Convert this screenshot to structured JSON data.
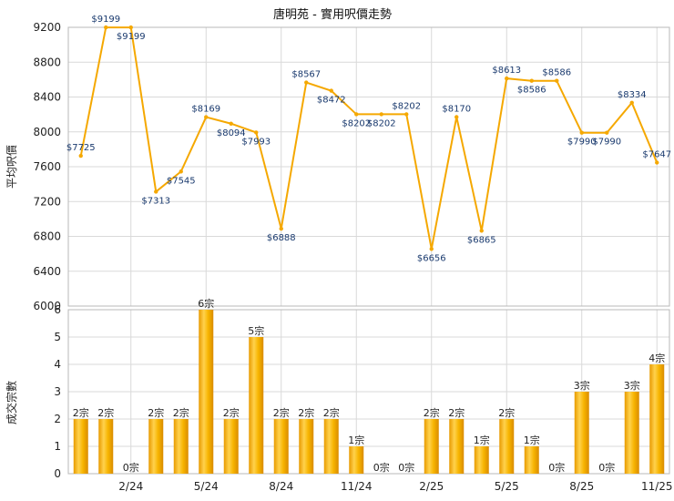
{
  "chart_data": [
    {
      "type": "line",
      "title": "唐明苑 - 實用呎價走勢",
      "ylabel": "平均呎價",
      "ylim": [
        6000,
        9200
      ],
      "yticks": [
        6000,
        6400,
        6800,
        7200,
        7600,
        8000,
        8400,
        8800,
        9200
      ],
      "x_ticks": [
        "2/24",
        "5/24",
        "8/24",
        "11/24",
        "2/25",
        "5/25",
        "8/25",
        "11/25"
      ],
      "grid": true,
      "series_color": "#f5a800",
      "points": [
        {
          "value": 7725,
          "label": "$7725"
        },
        {
          "value": 9199,
          "label": "$9199"
        },
        {
          "value": 9199,
          "label": "$9199"
        },
        {
          "value": 7313,
          "label": "$7313"
        },
        {
          "value": 7545,
          "label": "$7545"
        },
        {
          "value": 8169,
          "label": "$8169"
        },
        {
          "value": 8094,
          "label": "$8094"
        },
        {
          "value": 7993,
          "label": "$7993"
        },
        {
          "value": 6888,
          "label": "$6888"
        },
        {
          "value": 8567,
          "label": "$8567"
        },
        {
          "value": 8472,
          "label": "$8472"
        },
        {
          "value": 8202,
          "label": "$8202"
        },
        {
          "value": 8202,
          "label": "$8202"
        },
        {
          "value": 8202,
          "label": "$8202"
        },
        {
          "value": 6656,
          "label": "$6656"
        },
        {
          "value": 8170,
          "label": "$8170"
        },
        {
          "value": 6865,
          "label": "$6865"
        },
        {
          "value": 8613,
          "label": "$8613"
        },
        {
          "value": 8586,
          "label": "$8586"
        },
        {
          "value": 8586,
          "label": "$8586"
        },
        {
          "value": 7990,
          "label": "$7990"
        },
        {
          "value": 7990,
          "label": "$7990"
        },
        {
          "value": 8334,
          "label": "$8334"
        },
        {
          "value": 7647,
          "label": "$7647"
        }
      ]
    },
    {
      "type": "bar",
      "ylabel": "成交宗數",
      "ylim": [
        0,
        6
      ],
      "yticks": [
        0,
        1,
        2,
        3,
        4,
        5,
        6
      ],
      "x_ticks": [
        "2/24",
        "5/24",
        "8/24",
        "11/24",
        "2/25",
        "5/25",
        "8/25",
        "11/25"
      ],
      "grid": true,
      "bar_color": "#f5a800",
      "values": [
        2,
        2,
        0,
        2,
        2,
        6,
        2,
        5,
        2,
        2,
        2,
        1,
        0,
        0,
        2,
        2,
        1,
        2,
        1,
        0,
        3,
        0,
        3,
        4
      ],
      "labels": [
        "2宗",
        "2宗",
        "0宗",
        "2宗",
        "2宗",
        "6宗",
        "2宗",
        "5宗",
        "2宗",
        "2宗",
        "2宗",
        "1宗",
        "0宗",
        "0宗",
        "2宗",
        "2宗",
        "1宗",
        "2宗",
        "1宗",
        "0宗",
        "3宗",
        "0宗",
        "3宗",
        "4宗"
      ]
    }
  ]
}
